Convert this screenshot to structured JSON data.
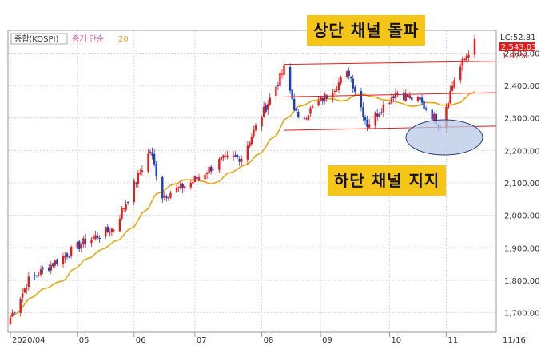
{
  "chart_data": {
    "type": "candlestick",
    "title": "종합(KOSPI)",
    "legend": [
      {
        "label": "종합(KOSPI)",
        "color": "#333333"
      },
      {
        "label": "종가 단순",
        "color": "#e0609a"
      },
      {
        "label": "20",
        "color": "#d8a020"
      }
    ],
    "last_labels": {
      "lc": "LC:52.81",
      "price": "2,543.03",
      "pct": "1.97%"
    },
    "y_axis": {
      "ticks": [
        1700,
        1800,
        1900,
        2000,
        2100,
        2200,
        2300,
        2400,
        2500
      ],
      "tick_labels": [
        "1,700.00",
        "1,800.00",
        "1,900.00",
        "2,000.00",
        "2,100.00",
        "2,200.00",
        "2,300.00",
        "2,400.00",
        "2,500.00"
      ],
      "ylim": [
        1640,
        2570
      ]
    },
    "x_axis": {
      "tick_labels": [
        "2020/04",
        "05",
        "06",
        "07",
        "08",
        "09",
        "10",
        "11",
        "11/16"
      ]
    },
    "ma_period": 20,
    "channel_lines": [
      {
        "name": "upper",
        "from": [
          "2020-08-14",
          2465
        ],
        "to": [
          "2020-11-16",
          2475
        ]
      },
      {
        "name": "middle",
        "from": [
          "2020-08-14",
          2365
        ],
        "to": [
          "2020-11-16",
          2378
        ]
      },
      {
        "name": "lower",
        "from": [
          "2020-08-14",
          2262
        ],
        "to": [
          "2020-11-16",
          2275
        ]
      }
    ],
    "annotations": [
      {
        "text": "상단 채널 돌파"
      },
      {
        "text": "하단 채널 지지"
      }
    ],
    "ohlc_key_points": [
      [
        "2020-04-01",
        1685
      ],
      [
        "2020-04-10",
        1800
      ],
      [
        "2020-04-24",
        1860
      ],
      [
        "2020-05-08",
        1920
      ],
      [
        "2020-05-22",
        1960
      ],
      [
        "2020-06-03",
        2120
      ],
      [
        "2020-06-09",
        2200
      ],
      [
        "2020-06-15",
        2060
      ],
      [
        "2020-06-29",
        2100
      ],
      [
        "2020-07-14",
        2170
      ],
      [
        "2020-07-24",
        2180
      ],
      [
        "2020-08-07",
        2360
      ],
      [
        "2020-08-14",
        2450
      ],
      [
        "2020-08-21",
        2290
      ],
      [
        "2020-09-04",
        2370
      ],
      [
        "2020-09-15",
        2440
      ],
      [
        "2020-09-24",
        2280
      ],
      [
        "2020-10-08",
        2380
      ],
      [
        "2020-10-20",
        2350
      ],
      [
        "2020-10-30",
        2280
      ],
      [
        "2020-11-06",
        2420
      ],
      [
        "2020-11-16",
        2543
      ]
    ]
  }
}
